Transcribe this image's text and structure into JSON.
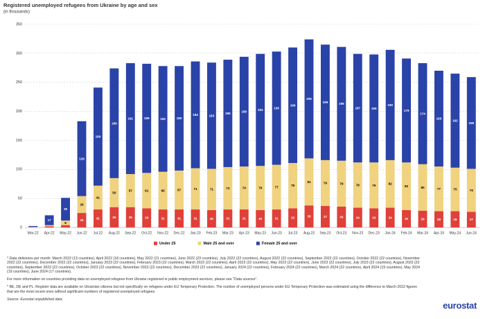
{
  "chart_data": {
    "type": "stacked-bar",
    "title": "Registered unemployed refugees from Ukraine by age and sex",
    "subtitle": "(in thousands)",
    "categories": [
      "Mar-22",
      "Apr-22",
      "May-22",
      "Jun-22",
      "Jul-22",
      "Aug-22",
      "Sep-22",
      "Oct-22",
      "Nov-22",
      "Dec-22",
      "Jan-23",
      "Feb-23",
      "Mar-23",
      "Apr-23",
      "May-23",
      "Jun-23",
      "Jul-23",
      "Aug-23",
      "Sep-23",
      "Oct-23",
      "Nov-23",
      "Dec-23",
      "Jan-24",
      "Feb-24",
      "Mar-24",
      "Apr-24",
      "May-24",
      "Jun-24"
    ],
    "series": [
      {
        "name": "Under 25",
        "color": "#e0403a",
        "label_color": "#ffffff",
        "values": [
          0.5,
          2,
          4,
          25,
          31,
          35,
          35,
          33,
          31,
          31,
          31,
          30,
          31,
          31,
          30,
          31,
          33,
          38,
          37,
          36,
          34,
          33,
          34,
          30,
          29,
          28,
          28,
          27
        ]
      },
      {
        "name": "Male 25 and over",
        "color": "#f0d27f",
        "label_color": "#000000",
        "values": [
          0.5,
          2,
          8,
          29,
          41,
          50,
          57,
          61,
          65,
          67,
          71,
          71,
          73,
          74,
          76,
          77,
          78,
          81,
          79,
          79,
          78,
          79,
          82,
          82,
          80,
          77,
          75,
          74
        ]
      },
      {
        "name": "Female 25 and over",
        "color": "#2a43a8",
        "label_color": "#ffffff",
        "values": [
          1.5,
          17,
          39,
          129,
          169,
          189,
          191,
          188,
          182,
          180,
          184,
          183,
          185,
          189,
          193,
          195,
          199,
          205,
          199,
          196,
          187,
          186,
          190,
          179,
          174,
          165,
          162,
          158
        ]
      }
    ],
    "ylim": [
      0,
      350
    ],
    "yticks": [
      0,
      50,
      100,
      150,
      200,
      250,
      300,
      350
    ],
    "grid": true,
    "legend": "bottom",
    "notes": [
      "* Data deliveries per month: March 2022 (13 countries), April 2022 (18 countries), May 2022 (21 countries), June 2022 (23 countries), July 2022 (22 countries), August 2022 (22 countries), September 2022 (22 countries), October 2022 (22 countries), November 2022 (22 countries), December 2022 (22 countries), January 2023 (22 countries), February 2023 (22 countries), March 2023 (22 countries), April 2023 (22 countries), May 2023 (22 countries), June 2023 (22 countries), July 2023 (22 countries), August 2023 (22 countries), September 2023 (22 countries), October 2023 (22 countries), November 2023 (22 countries), December 2023 (22 countries), January 2024 (22 countries), February 2024 (22 countries), March 2024 (22 countries), April 2024 (19 countries), May 2024 (19 countries), June 2024 (17 countries).",
      "For more information on countries providing data on unemployed refugees from Ukraine registered in public employment services, please see \"Data sources\".",
      "* BE, DE and PL: Register data are available on Ukrainian citizens but not specifically on refugees under EU Temporary Protection. The number of unemployed persons under EU Temporary Protection was estimated using the difference to March 2022 figures that are the most recent ones without significant numbers of registered unemployed refugees."
    ],
    "source": "Source: Eurostat unpublished data",
    "logo": "eurostat"
  }
}
